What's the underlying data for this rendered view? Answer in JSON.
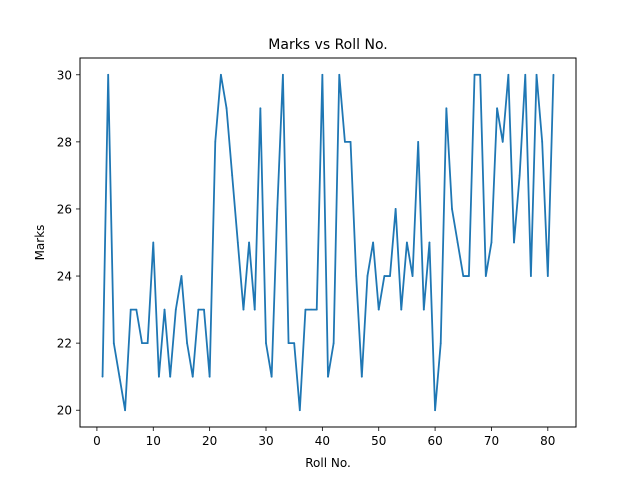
{
  "chart_data": {
    "type": "line",
    "title": "Marks vs Roll No.",
    "xlabel": "Roll No.",
    "ylabel": "Marks",
    "xlim": [
      -3,
      85
    ],
    "ylim": [
      19.5,
      30.5
    ],
    "xticks": [
      0,
      10,
      20,
      30,
      40,
      50,
      60,
      70,
      80
    ],
    "yticks": [
      20,
      22,
      24,
      26,
      28,
      30
    ],
    "grid": false,
    "line_color": "#1f77b4",
    "series": [
      {
        "x": [
          1,
          2,
          3,
          4,
          5,
          6,
          7,
          8,
          9,
          10,
          11,
          12,
          13,
          14,
          15,
          16,
          17,
          18,
          19,
          20,
          21,
          22,
          23,
          24,
          25,
          26,
          27,
          28,
          29,
          30,
          31,
          32,
          33,
          34,
          35,
          36,
          37,
          38,
          39,
          40,
          41,
          42,
          43,
          44,
          45,
          46,
          47,
          48,
          49,
          50,
          51,
          52,
          53,
          54,
          55,
          56,
          57,
          58,
          59,
          60,
          61,
          62,
          63,
          64,
          65,
          66,
          67,
          68,
          69,
          70,
          71,
          72,
          73,
          74,
          75,
          76,
          77,
          78,
          79,
          80,
          81
        ],
        "values": [
          21,
          30,
          22,
          21,
          20,
          23,
          23,
          22,
          22,
          25,
          21,
          23,
          21,
          23,
          24,
          22,
          21,
          23,
          23,
          21,
          28,
          30,
          29,
          27,
          25,
          23,
          25,
          23,
          29,
          22,
          21,
          26,
          30,
          22,
          22,
          20,
          23,
          23,
          23,
          30,
          21,
          22,
          30,
          28,
          28,
          24,
          21,
          24,
          25,
          23,
          24,
          24,
          26,
          23,
          25,
          24,
          28,
          23,
          25,
          20,
          22,
          29,
          26,
          25,
          24,
          24,
          30,
          30,
          24,
          25,
          29,
          28,
          30,
          25,
          27,
          30,
          24,
          30,
          28,
          24,
          30
        ]
      }
    ]
  }
}
